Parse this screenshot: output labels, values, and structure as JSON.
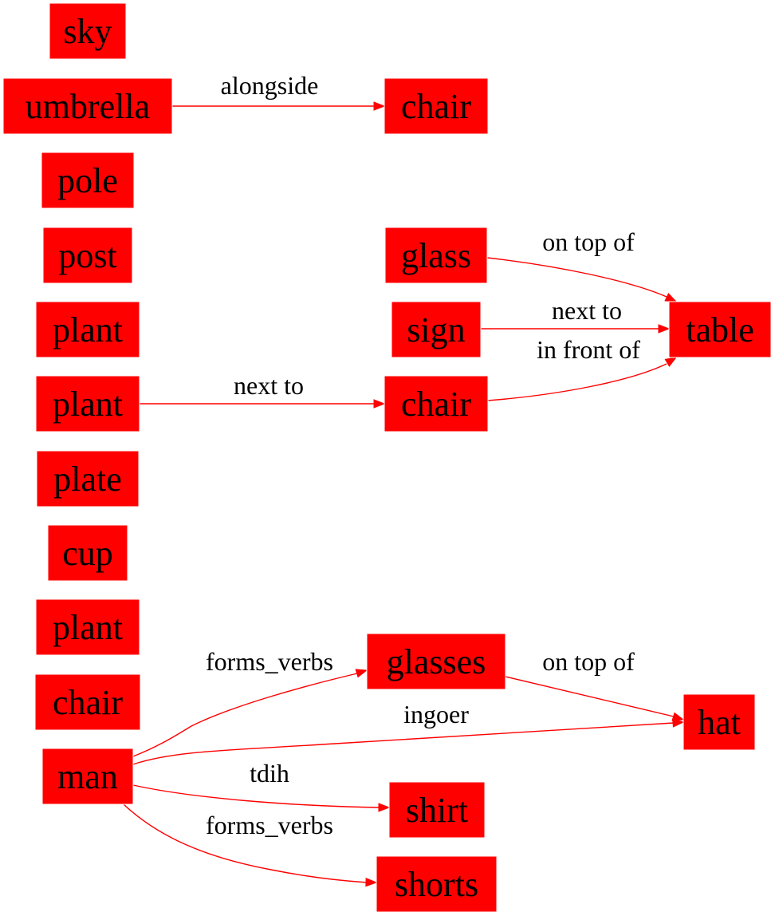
{
  "colors": {
    "node_fill": "#ff0000",
    "edge": "#ff0000",
    "text": "#000000",
    "background": "#ffffff"
  },
  "nodes": [
    {
      "id": "sky",
      "label": "sky"
    },
    {
      "id": "umbrella",
      "label": "umbrella"
    },
    {
      "id": "chair_a",
      "label": "chair"
    },
    {
      "id": "pole",
      "label": "pole"
    },
    {
      "id": "post",
      "label": "post"
    },
    {
      "id": "glass",
      "label": "glass"
    },
    {
      "id": "plant_a",
      "label": "plant"
    },
    {
      "id": "sign",
      "label": "sign"
    },
    {
      "id": "table",
      "label": "table"
    },
    {
      "id": "plant_b",
      "label": "plant"
    },
    {
      "id": "chair_b",
      "label": "chair"
    },
    {
      "id": "plate",
      "label": "plate"
    },
    {
      "id": "cup",
      "label": "cup"
    },
    {
      "id": "plant_c",
      "label": "plant"
    },
    {
      "id": "glasses",
      "label": "glasses"
    },
    {
      "id": "chair_c",
      "label": "chair"
    },
    {
      "id": "hat",
      "label": "hat"
    },
    {
      "id": "man",
      "label": "man"
    },
    {
      "id": "shirt",
      "label": "shirt"
    },
    {
      "id": "shorts",
      "label": "shorts"
    }
  ],
  "edges": [
    {
      "from": "umbrella",
      "to": "chair_a",
      "label": "alongside"
    },
    {
      "from": "glass",
      "to": "table",
      "label": "on top of"
    },
    {
      "from": "sign",
      "to": "table",
      "label": "next to"
    },
    {
      "from": "chair_b",
      "to": "table",
      "label": "in front of"
    },
    {
      "from": "plant_b",
      "to": "chair_b",
      "label": "next to"
    },
    {
      "from": "man",
      "to": "glasses",
      "label": "forms_verbs"
    },
    {
      "from": "glasses",
      "to": "hat",
      "label": "on top of"
    },
    {
      "from": "man",
      "to": "hat",
      "label": "ingoer"
    },
    {
      "from": "man",
      "to": "shirt",
      "label": "tdih"
    },
    {
      "from": "man",
      "to": "shorts",
      "label": "forms_verbs"
    }
  ]
}
